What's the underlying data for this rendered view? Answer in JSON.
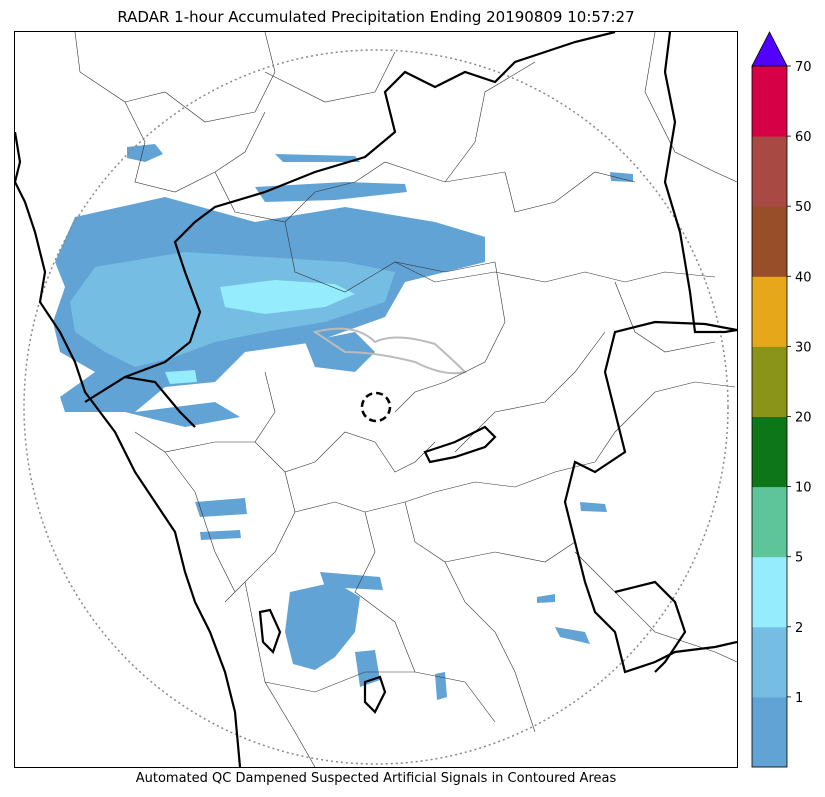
{
  "title": "RADAR 1-hour Accumulated Precipitation Ending 20190809 10:57:27",
  "caption": "Automated QC Dampened Suspected Artificial Signals in Contoured Areas",
  "colorbar": {
    "levels": [
      {
        "from": 0,
        "to": 1,
        "color": "#62a3d6"
      },
      {
        "from": 1,
        "to": 2,
        "color": "#75bde3"
      },
      {
        "from": 2,
        "to": 5,
        "color": "#94ecfc"
      },
      {
        "from": 5,
        "to": 10,
        "color": "#5ec49a"
      },
      {
        "from": 10,
        "to": 20,
        "color": "#0d7619"
      },
      {
        "from": 20,
        "to": 30,
        "color": "#8a9419"
      },
      {
        "from": 30,
        "to": 40,
        "color": "#e6a81a"
      },
      {
        "from": 40,
        "to": 50,
        "color": "#984e29"
      },
      {
        "from": 50,
        "to": 60,
        "color": "#a84a43"
      },
      {
        "from": 60,
        "to": 70,
        "color": "#d50045"
      }
    ],
    "extend_color": "#5200ff",
    "tick_labels": [
      "1",
      "2",
      "5",
      "10",
      "20",
      "30",
      "40",
      "50",
      "60",
      "70"
    ]
  },
  "legend_colors": {
    "coast_border": "#000000",
    "district_lines": "#333333",
    "range_ring": "#888888",
    "qc_contour": "#bbbbbb",
    "rain_light": "#62a3d6",
    "rain_mid": "#75bde3",
    "rain_heavy": "#94ecfc"
  }
}
